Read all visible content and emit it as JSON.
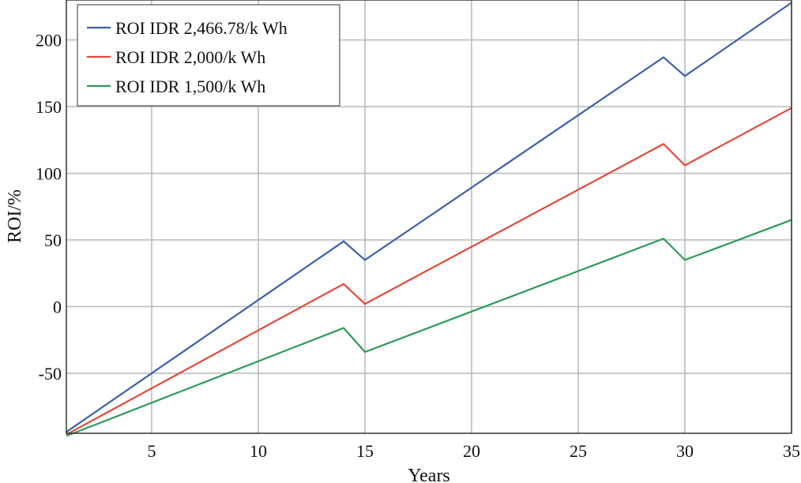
{
  "chart_data": {
    "type": "line",
    "title": "",
    "xlabel": "Years",
    "ylabel": "ROI/%",
    "xlim": [
      1,
      35
    ],
    "ylim": [
      -95,
      230
    ],
    "x_ticks": [
      5,
      10,
      15,
      20,
      25,
      30,
      35
    ],
    "y_ticks": [
      -50,
      0,
      50,
      100,
      150,
      200
    ],
    "grid": true,
    "legend_position": "top-left",
    "series": [
      {
        "name": "ROI IDR 2,466.78/k Wh",
        "color": "#3a62a8",
        "x": [
          1,
          14,
          15,
          29,
          30,
          35
        ],
        "y": [
          -94,
          49,
          35,
          187,
          173,
          228
        ]
      },
      {
        "name": "ROI IDR 2,000/k Wh",
        "color": "#e04a3a",
        "x": [
          1,
          14,
          15,
          29,
          30,
          35
        ],
        "y": [
          -96,
          17,
          2,
          122,
          106,
          149
        ]
      },
      {
        "name": "ROI IDR 1,500/k Wh",
        "color": "#2e9a5a",
        "x": [
          1,
          14,
          15,
          29,
          30,
          35
        ],
        "y": [
          -97,
          -16,
          -34,
          51,
          35,
          65
        ]
      }
    ]
  }
}
